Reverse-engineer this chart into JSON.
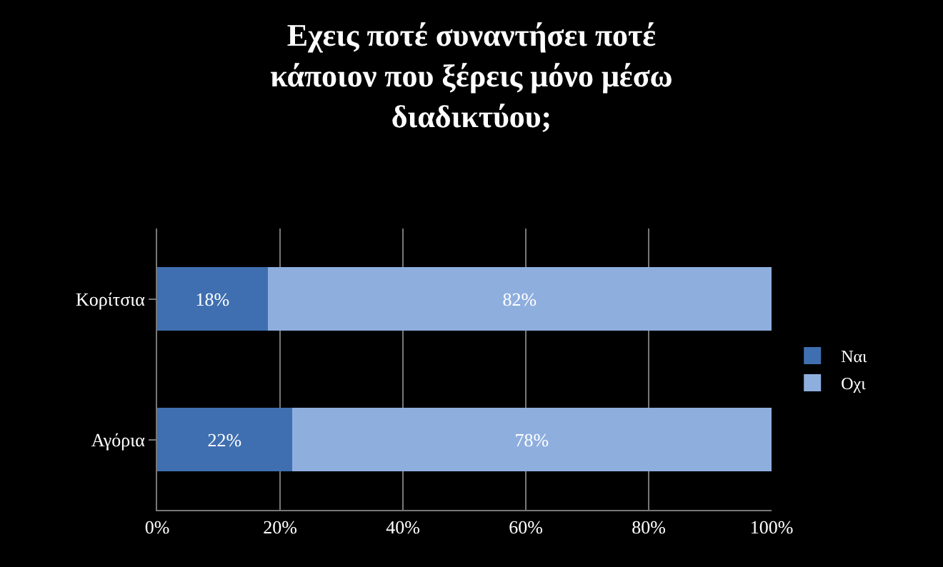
{
  "chart_data": {
    "type": "bar",
    "orientation": "horizontal",
    "stacked": true,
    "title": "Εχεις ποτέ συναντήσει ποτέ\nκάποιον που ξέρεις μόνο μέσω\nδιαδικτύου;",
    "categories": [
      "Κορίτσια",
      "Αγόρια"
    ],
    "series": [
      {
        "name": "Ναι",
        "color": "#3f6fb0",
        "values": [
          18,
          22
        ],
        "value_labels": [
          "18%",
          "22%"
        ]
      },
      {
        "name": "Οχι",
        "color": "#8eaede",
        "values": [
          82,
          78
        ],
        "value_labels": [
          "82%",
          "78%"
        ]
      }
    ],
    "xlim": [
      0,
      100
    ],
    "xticks": [
      {
        "value": 0,
        "label": "0%"
      },
      {
        "value": 20,
        "label": "20%"
      },
      {
        "value": 40,
        "label": "40%"
      },
      {
        "value": 60,
        "label": "60%"
      },
      {
        "value": 80,
        "label": "80%"
      },
      {
        "value": 100,
        "label": "100%"
      }
    ],
    "grid": "x",
    "legend": "right"
  }
}
